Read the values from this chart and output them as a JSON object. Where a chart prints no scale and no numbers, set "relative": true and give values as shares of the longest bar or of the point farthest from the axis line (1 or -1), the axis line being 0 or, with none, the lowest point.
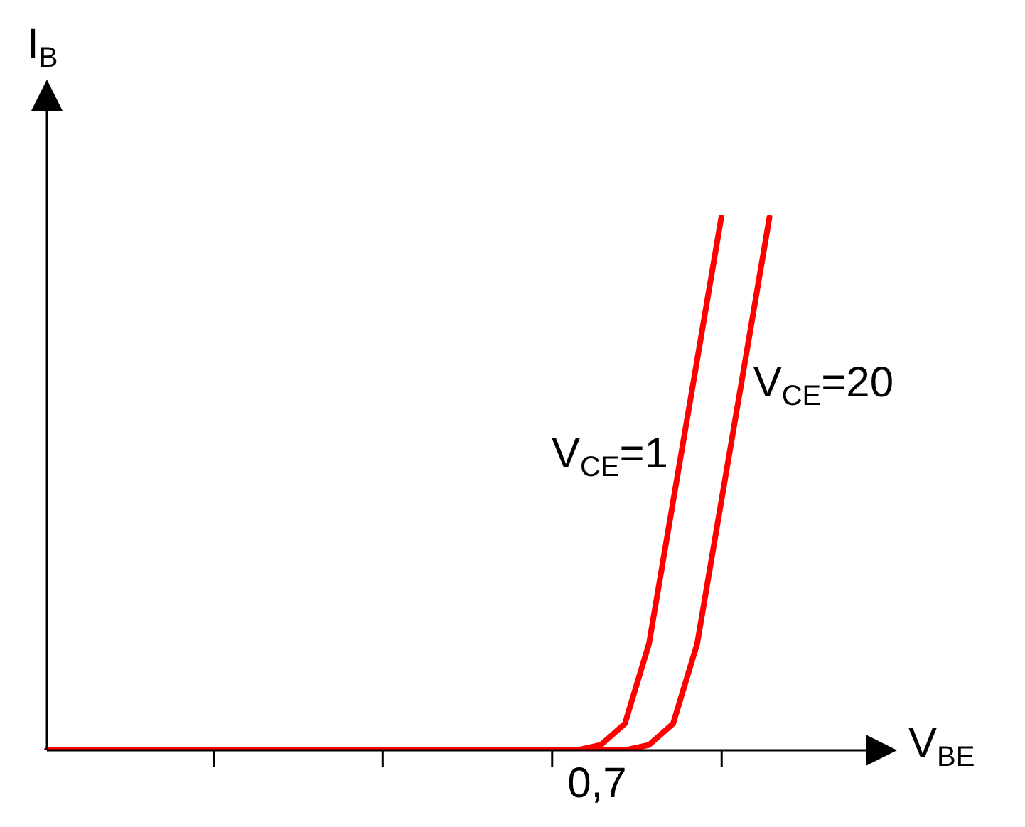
{
  "chart_data": {
    "type": "line",
    "relative": true,
    "xlabel": "V$_{BE}$",
    "ylabel": "I$_{B}$",
    "annotations": [
      "0,7"
    ],
    "categories": [
      null,
      null,
      null,
      null,
      null,
      null,
      null,
      null,
      null,
      null,
      null,
      null,
      null,
      null,
      null,
      null,
      null,
      null,
      null,
      null,
      null,
      null,
      null,
      null,
      null,
      null,
      null,
      null,
      null,
      null,
      null,
      null,
      null,
      null,
      null
    ],
    "marker": "none",
    "line_style": "solid",
    "legend": false,
    "series": [
      {
        "name": "V$_{CE}$=1",
        "color": "#ff0000",
        "values": [
          0,
          0,
          0,
          0,
          0,
          0,
          0,
          0,
          0,
          0,
          0,
          0,
          0,
          0,
          0,
          0,
          0,
          0,
          0,
          0,
          0,
          0,
          0,
          0.01,
          0.05,
          0.2,
          0.467,
          0.733,
          1,
          null,
          null,
          null,
          null,
          null,
          null
        ]
      },
      {
        "name": "V$_{CE}$=20",
        "color": "#ff0000",
        "values": [
          0,
          0,
          0,
          0,
          0,
          0,
          0,
          0,
          0,
          0,
          0,
          0,
          0,
          0,
          0,
          0,
          0,
          0,
          0,
          0,
          0,
          0,
          0,
          0,
          0,
          0.01,
          0.05,
          0.2,
          0.467,
          0.733,
          1,
          null,
          null,
          null,
          null
        ]
      }
    ]
  }
}
